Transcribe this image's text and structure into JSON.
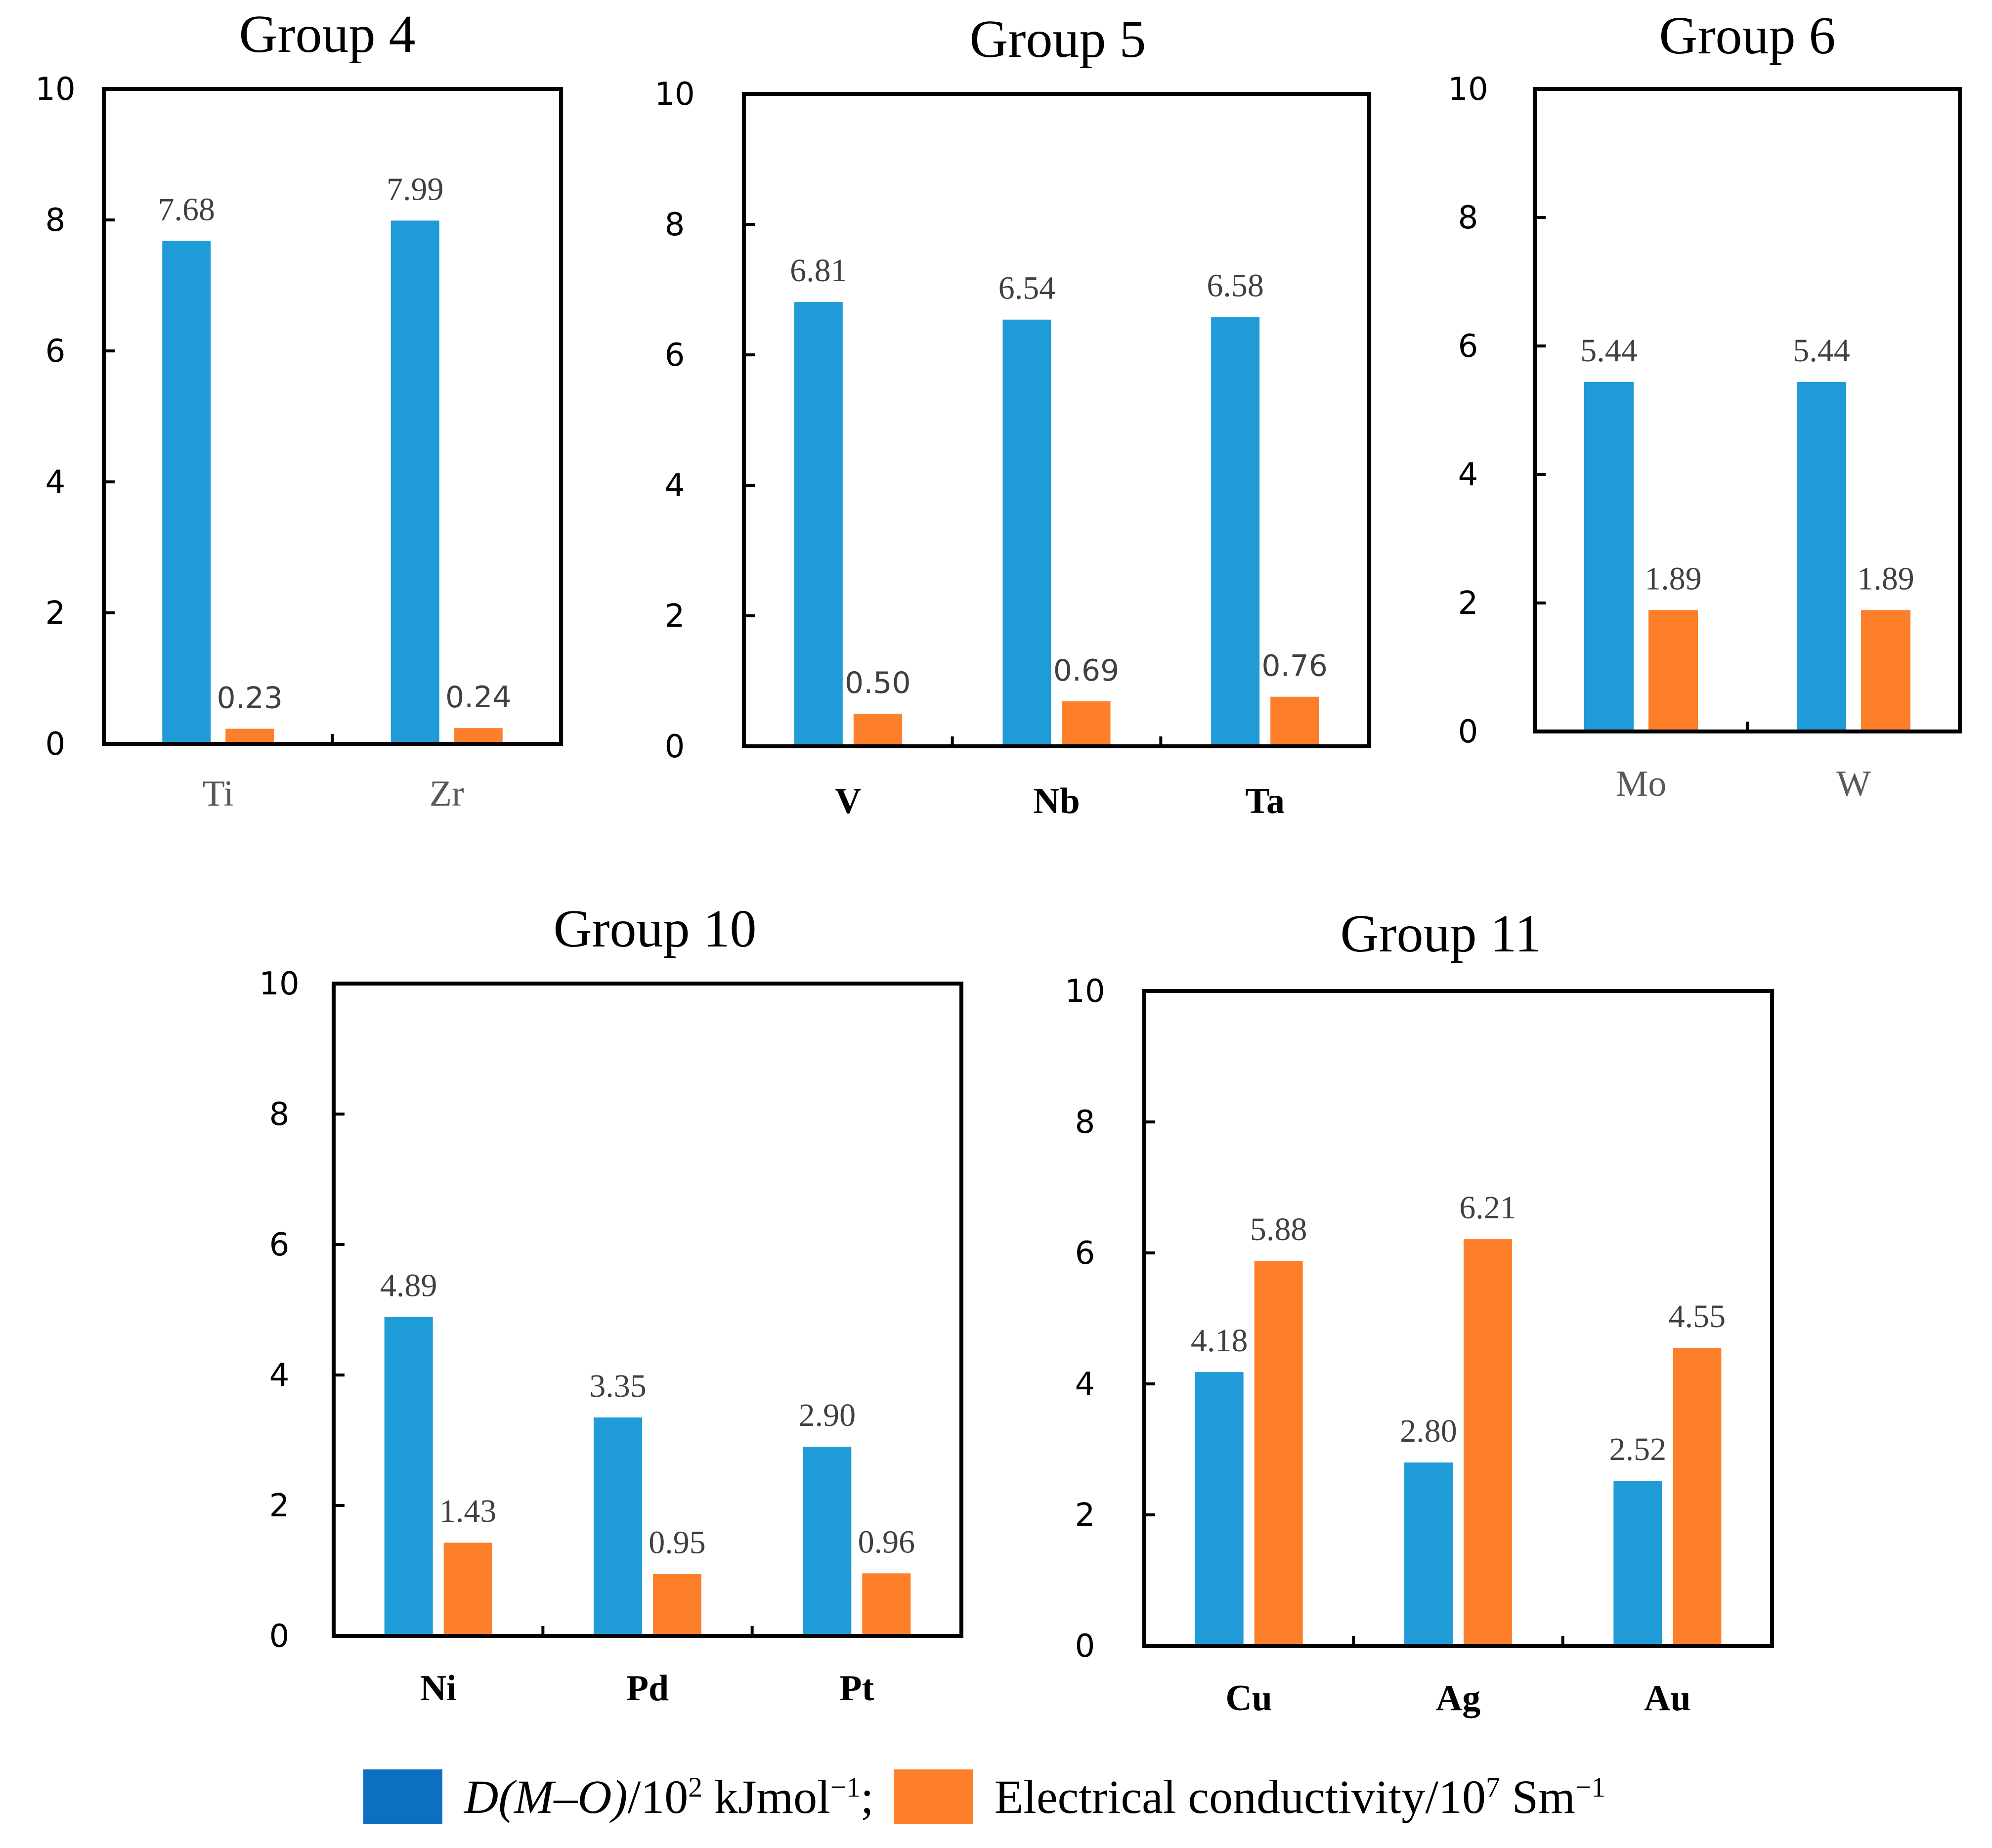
{
  "colors": {
    "d_mo": "#1f9bd7",
    "conductivity": "#fe7f2a",
    "legend_d_mo": "#0c70c2"
  },
  "legend": {
    "d_mo": {
      "italic": "D(M–O)",
      "unit_base": "/10",
      "unit_exp": "2",
      "unit_tail": " kJmol",
      "unit_tail_exp": "−1",
      "separator": ";"
    },
    "conductivity": {
      "label": "Electrical conductivity/10",
      "exp": "7",
      "unit": " Sm",
      "unit_exp": "−1"
    }
  },
  "chart_data": [
    {
      "type": "bar",
      "title": "Group 4",
      "categories": [
        "Ti",
        "Zr"
      ],
      "series": [
        {
          "name": "D(M–O)/10^2 kJmol−1",
          "values": [
            7.68,
            7.99
          ],
          "labels": [
            "7.68",
            "7.99"
          ]
        },
        {
          "name": "Electrical conductivity/10^7 Sm−1",
          "values": [
            0.23,
            0.24
          ],
          "labels": [
            "0.23",
            "0.24"
          ]
        }
      ],
      "ylim": [
        0,
        10
      ],
      "yticks": [
        0,
        2,
        4,
        6,
        8,
        10
      ]
    },
    {
      "type": "bar",
      "title": "Group 5",
      "categories": [
        "V",
        "Nb",
        "Ta"
      ],
      "series": [
        {
          "name": "D(M–O)/10^2 kJmol−1",
          "values": [
            6.81,
            6.54,
            6.58
          ],
          "labels": [
            "6.81",
            "6.54",
            "6.58"
          ]
        },
        {
          "name": "Electrical conductivity/10^7 Sm−1",
          "values": [
            0.5,
            0.69,
            0.76
          ],
          "labels": [
            "0.50",
            "0.69",
            "0.76"
          ]
        }
      ],
      "ylim": [
        0,
        10
      ],
      "yticks": [
        0,
        2,
        4,
        6,
        8,
        10
      ]
    },
    {
      "type": "bar",
      "title": "Group 6",
      "categories": [
        "Mo",
        "W"
      ],
      "series": [
        {
          "name": "D(M–O)/10^2 kJmol−1",
          "values": [
            5.44,
            5.44
          ],
          "labels": [
            "5.44",
            "5.44"
          ]
        },
        {
          "name": "Electrical conductivity/10^7 Sm−1",
          "values": [
            1.89,
            1.89
          ],
          "labels": [
            "1.89",
            "1.89"
          ]
        }
      ],
      "ylim": [
        0,
        10
      ],
      "yticks": [
        0,
        2,
        4,
        6,
        8,
        10
      ]
    },
    {
      "type": "bar",
      "title": "Group 10",
      "categories": [
        "Ni",
        "Pd",
        "Pt"
      ],
      "series": [
        {
          "name": "D(M–O)/10^2 kJmol−1",
          "values": [
            4.89,
            3.35,
            2.9
          ],
          "labels": [
            "4.89",
            "3.35",
            "2.90"
          ]
        },
        {
          "name": "Electrical conductivity/10^7 Sm−1",
          "values": [
            1.43,
            0.95,
            0.96
          ],
          "labels": [
            "1.43",
            "0.95",
            "0.96"
          ]
        }
      ],
      "ylim": [
        0,
        10
      ],
      "yticks": [
        0,
        2,
        4,
        6,
        8,
        10
      ]
    },
    {
      "type": "bar",
      "title": "Group 11",
      "categories": [
        "Cu",
        "Ag",
        "Au"
      ],
      "series": [
        {
          "name": "D(M–O)/10^2 kJmol−1",
          "values": [
            4.18,
            2.8,
            2.52
          ],
          "labels": [
            "4.18",
            "2.80",
            "2.52"
          ]
        },
        {
          "name": "Electrical conductivity/10^7 Sm−1",
          "values": [
            5.88,
            6.21,
            4.55
          ],
          "labels": [
            "5.88",
            "6.21",
            "4.55"
          ]
        }
      ],
      "ylim": [
        0,
        10
      ],
      "yticks": [
        0,
        2,
        4,
        6,
        8,
        10
      ]
    }
  ]
}
